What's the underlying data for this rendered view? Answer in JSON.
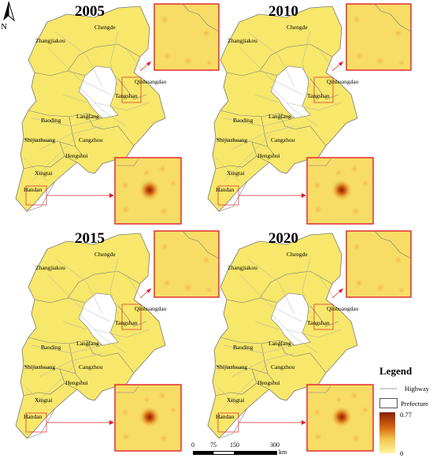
{
  "panels": [
    {
      "year": "2005"
    },
    {
      "year": "2010"
    },
    {
      "year": "2015"
    },
    {
      "year": "2020"
    }
  ],
  "city_labels": {
    "zhangjiakou": "Zhangjiakou",
    "chengde": "Chengde",
    "qinhuangdao": "Qinhuangdao",
    "tangshan": "Tangshan",
    "baoding": "Baoding",
    "langfang": "Langfang",
    "shijiazhuang": "Shijiazhuang",
    "cangzhou": "Cangzhou",
    "hengshui": "Hengshui",
    "xingtai": "Xingtai",
    "handan": "Handan"
  },
  "north_arrow": {
    "label": "N",
    "icon": "north-arrow-icon"
  },
  "legend": {
    "title": "Legend",
    "highway": "Highway",
    "prefecture": "Prefecture",
    "max": "0.77",
    "min": "0"
  },
  "scale_bar": {
    "ticks": [
      "0",
      "75",
      "150",
      "300"
    ],
    "unit": "km"
  },
  "colors": {
    "region_fill": "#f7e76a",
    "boundary": "#7a7a7a",
    "inset_border": "#e0202a",
    "highway": "#b0b0b0",
    "ramp_high": "#8a1f04",
    "ramp_low": "#fff7a0"
  }
}
